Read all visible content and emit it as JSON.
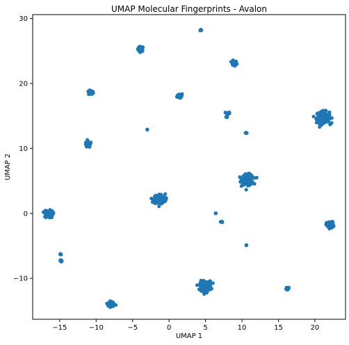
{
  "chart_data": {
    "type": "scatter",
    "title": "UMAP Molecular Fingerprints - Avalon",
    "xlabel": "UMAP 1",
    "ylabel": "UMAP 2",
    "xlim": [
      -18.7,
      24.2
    ],
    "ylim": [
      -16.3,
      30.6
    ],
    "xticks": [
      -15,
      -10,
      -5,
      0,
      5,
      10,
      15,
      20
    ],
    "yticks": [
      -10,
      0,
      10,
      20,
      30
    ],
    "grid": false,
    "legend": "none",
    "marker_color": "#1f77b4",
    "clusters": [
      {
        "x": 4.4,
        "y": 28.2,
        "spread": 0.12,
        "points": 8
      },
      {
        "x": -3.9,
        "y": 25.3,
        "spread": 0.35,
        "points": 40
      },
      {
        "x": 8.9,
        "y": 23.1,
        "spread": 0.35,
        "points": 40
      },
      {
        "x": -10.7,
        "y": 18.6,
        "spread": 0.3,
        "points": 35
      },
      {
        "x": 1.5,
        "y": 18.1,
        "spread": 0.35,
        "points": 40
      },
      {
        "x": 8.1,
        "y": 15.4,
        "spread": 0.2,
        "points": 14
      },
      {
        "x": 7.9,
        "y": 14.9,
        "spread": 0.1,
        "points": 6
      },
      {
        "x": 21.1,
        "y": 14.8,
        "spread": 0.8,
        "points": 170
      },
      {
        "x": -3.0,
        "y": 12.9,
        "spread": 0.05,
        "points": 3
      },
      {
        "x": 10.6,
        "y": 12.4,
        "spread": 0.1,
        "points": 6
      },
      {
        "x": -11.1,
        "y": 10.6,
        "spread": 0.4,
        "points": 50
      },
      {
        "x": 10.8,
        "y": 5.2,
        "spread": 0.7,
        "points": 150
      },
      {
        "x": -1.3,
        "y": 2.2,
        "spread": 0.7,
        "points": 150
      },
      {
        "x": -16.5,
        "y": -0.1,
        "spread": 0.5,
        "points": 90
      },
      {
        "x": 6.4,
        "y": 0.0,
        "spread": 0.05,
        "points": 3
      },
      {
        "x": 7.2,
        "y": -1.3,
        "spread": 0.12,
        "points": 8
      },
      {
        "x": 22.1,
        "y": -1.8,
        "spread": 0.45,
        "points": 70
      },
      {
        "x": 10.6,
        "y": -4.9,
        "spread": 0.05,
        "points": 3
      },
      {
        "x": -14.9,
        "y": -6.3,
        "spread": 0.08,
        "points": 4
      },
      {
        "x": -14.8,
        "y": -7.3,
        "spread": 0.15,
        "points": 10
      },
      {
        "x": 5.0,
        "y": -11.2,
        "spread": 0.7,
        "points": 130
      },
      {
        "x": 16.3,
        "y": -11.6,
        "spread": 0.2,
        "points": 20
      },
      {
        "x": -7.8,
        "y": -13.9,
        "spread": 0.35,
        "points": 40
      }
    ]
  }
}
